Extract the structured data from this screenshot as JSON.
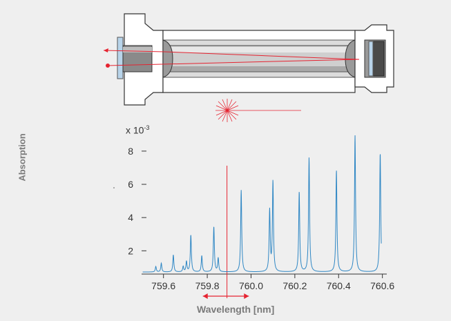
{
  "chart_data": {
    "type": "line",
    "title": "",
    "xlabel": "Wavelength [nm]",
    "ylabel": "Absorption",
    "y_scale_prefix": "x 10",
    "y_scale_exponent": "-3",
    "xlim": [
      759.5,
      760.62
    ],
    "ylim": [
      0.6,
      9.2
    ],
    "x_ticks": [
      "759.6",
      "759.8",
      "760.0",
      "760.2",
      "760.4",
      "760.6"
    ],
    "y_ticks": [
      "2",
      "4",
      "6",
      "8"
    ],
    "baseline": 0.72,
    "peaks": [
      {
        "x": 759.565,
        "y": 1.05
      },
      {
        "x": 759.59,
        "y": 1.25
      },
      {
        "x": 759.645,
        "y": 1.75
      },
      {
        "x": 759.69,
        "y": 1.05
      },
      {
        "x": 759.705,
        "y": 1.35
      },
      {
        "x": 759.725,
        "y": 2.95
      },
      {
        "x": 759.775,
        "y": 1.7
      },
      {
        "x": 759.83,
        "y": 3.45
      },
      {
        "x": 759.85,
        "y": 1.55
      },
      {
        "x": 759.955,
        "y": 5.65
      },
      {
        "x": 760.085,
        "y": 4.4
      },
      {
        "x": 760.1,
        "y": 6.15
      },
      {
        "x": 760.22,
        "y": 5.55
      },
      {
        "x": 760.265,
        "y": 7.6
      },
      {
        "x": 760.39,
        "y": 6.85
      },
      {
        "x": 760.475,
        "y": 8.95
      },
      {
        "x": 760.59,
        "y": 7.9
      }
    ],
    "marker_x": 759.89,
    "scan_range": [
      759.78,
      759.99
    ],
    "line_color": "#2d86c4",
    "marker_color": "#e52330"
  }
}
